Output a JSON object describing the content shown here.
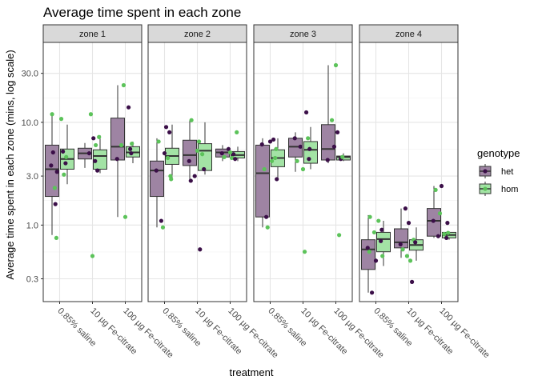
{
  "chart_data": {
    "type": "box",
    "title": "Average time spent in each zone",
    "xlabel": "treatment",
    "ylabel": "Average time spent in each zone (mins, log scale)",
    "yscale": "log10",
    "ylim": [
      0.18,
      60
    ],
    "yticks": [
      0.3,
      1.0,
      3.0,
      10.0,
      30.0
    ],
    "ytick_labels": [
      "0.3",
      "1.0",
      "3.0",
      "10.0",
      "30.0"
    ],
    "categories": [
      "0.85% saline",
      "10 µg Fe-citrate",
      "100 µg Fe-citrate"
    ],
    "facets": [
      "zone 1",
      "zone 2",
      "zone 3",
      "zone 4"
    ],
    "legend": {
      "title": "genotype",
      "position": "right",
      "entries": [
        {
          "name": "het",
          "fill": "#9e84a3",
          "point": "#3b0f48"
        },
        {
          "name": "hom",
          "fill": "#a3e3a5",
          "point": "#5cc35a"
        }
      ]
    },
    "grid": true,
    "strip_fill": "#d9d9d9",
    "boxes": [
      [
        [
          {
            "genotype": "het",
            "q1": 1.9,
            "median": 3.5,
            "q3": 6.0,
            "low": 0.8,
            "high": 12.5
          },
          {
            "genotype": "hom",
            "q1": 3.5,
            "median": 4.4,
            "q3": 5.5,
            "low": 2.5,
            "high": 9.5
          }
        ],
        [
          {
            "genotype": "het",
            "q1": 4.4,
            "median": 5.0,
            "q3": 5.6,
            "low": 3.6,
            "high": 6.3
          },
          {
            "genotype": "hom",
            "q1": 3.5,
            "median": 4.7,
            "q3": 5.4,
            "low": 3.2,
            "high": 7.5
          }
        ],
        [
          {
            "genotype": "het",
            "q1": 4.3,
            "median": 5.8,
            "q3": 11.0,
            "low": 1.2,
            "high": 23.0
          },
          {
            "genotype": "hom",
            "q1": 4.6,
            "median": 5.1,
            "q3": 5.8,
            "low": 4.0,
            "high": 6.5
          }
        ]
      ],
      [
        [
          {
            "genotype": "het",
            "q1": 1.9,
            "median": 3.4,
            "q3": 4.2,
            "low": 0.95,
            "high": 7.0
          },
          {
            "genotype": "hom",
            "q1": 3.9,
            "median": 4.7,
            "q3": 5.6,
            "low": 2.7,
            "high": 9.5
          }
        ],
        [
          {
            "genotype": "het",
            "q1": 3.8,
            "median": 4.8,
            "q3": 6.7,
            "low": 2.8,
            "high": 10.5
          },
          {
            "genotype": "hom",
            "q1": 3.4,
            "median": 5.3,
            "q3": 6.2,
            "low": 3.1,
            "high": 10.0
          }
        ],
        [
          {
            "genotype": "het",
            "q1": 4.6,
            "median": 5.1,
            "q3": 5.5,
            "low": 4.2,
            "high": 6.0
          },
          {
            "genotype": "hom",
            "q1": 4.5,
            "median": 4.8,
            "q3": 5.2,
            "low": 4.2,
            "high": 5.8
          }
        ]
      ],
      [
        [
          {
            "genotype": "het",
            "q1": 1.2,
            "median": 3.2,
            "q3": 6.0,
            "low": 0.95,
            "high": 7.0
          },
          {
            "genotype": "hom",
            "q1": 3.7,
            "median": 4.5,
            "q3": 5.4,
            "low": 2.7,
            "high": 7.0
          }
        ],
        [
          {
            "genotype": "het",
            "q1": 4.6,
            "median": 5.8,
            "q3": 7.0,
            "low": 3.3,
            "high": 8.0
          },
          {
            "genotype": "hom",
            "q1": 4.0,
            "median": 5.4,
            "q3": 6.5,
            "low": 3.5,
            "high": 9.0
          }
        ],
        [
          {
            "genotype": "het",
            "q1": 4.3,
            "median": 5.5,
            "q3": 9.5,
            "low": 4.0,
            "high": 36.0
          },
          {
            "genotype": "hom",
            "q1": 4.3,
            "median": 4.6,
            "q3": 4.7,
            "low": 4.2,
            "high": 5.0
          }
        ]
      ],
      [
        [
          {
            "genotype": "het",
            "q1": 0.37,
            "median": 0.58,
            "q3": 0.72,
            "low": 0.22,
            "high": 1.25
          },
          {
            "genotype": "hom",
            "q1": 0.55,
            "median": 0.73,
            "q3": 0.85,
            "low": 0.4,
            "high": 1.1
          }
        ],
        [
          {
            "genotype": "het",
            "q1": 0.6,
            "median": 0.68,
            "q3": 0.92,
            "low": 0.48,
            "high": 1.45
          },
          {
            "genotype": "hom",
            "q1": 0.57,
            "median": 0.64,
            "q3": 0.72,
            "low": 0.45,
            "high": 0.95
          }
        ],
        [
          {
            "genotype": "het",
            "q1": 0.78,
            "median": 1.1,
            "q3": 1.45,
            "low": 0.75,
            "high": 2.4
          },
          {
            "genotype": "hom",
            "q1": 0.75,
            "median": 0.8,
            "q3": 0.85,
            "low": 0.72,
            "high": 0.87
          }
        ]
      ]
    ],
    "points": [
      [
        [
          [
            [
              -0.26,
              3.8
            ],
            [
              -0.23,
              12.0
            ],
            [
              -0.2,
              5.1
            ],
            [
              -0.15,
              2.3
            ],
            [
              -0.13,
              1.6
            ],
            [
              -0.1,
              0.75
            ],
            [
              -0.08,
              3.3
            ],
            [
              0.05,
              10.8
            ],
            [
              0.1,
              5.2
            ],
            [
              0.13,
              3.1
            ],
            [
              0.18,
              4.0
            ],
            [
              0.2,
              4.6
            ]
          ]
        ],
        [
          [
            [
              -0.1,
              5.0
            ],
            [
              -0.05,
              12.0
            ],
            [
              0.03,
              7.0
            ],
            [
              0.1,
              6.0
            ],
            [
              0.15,
              3.4
            ],
            [
              0.2,
              7.2
            ],
            [
              0.08,
              4.2
            ],
            [
              0.0,
              0.5
            ]
          ]
        ],
        [
          [
            [
              -0.25,
              4.4
            ],
            [
              -0.05,
              23.0
            ],
            [
              0.1,
              14.0
            ],
            [
              0.0,
              1.2
            ],
            [
              0.15,
              5.5
            ],
            [
              0.2,
              6.2
            ],
            [
              0.18,
              5.0
            ],
            [
              -0.12,
              6.0
            ]
          ]
        ]
      ],
      [
        [
          [
            [
              -0.25,
              3.4
            ],
            [
              -0.18,
              6.5
            ],
            [
              -0.1,
              1.1
            ],
            [
              -0.05,
              0.95
            ],
            [
              0.05,
              9.0
            ],
            [
              0.1,
              4.5
            ],
            [
              0.0,
              5.0
            ],
            [
              0.2,
              2.8
            ],
            [
              0.15,
              8.0
            ],
            [
              0.18,
              3.0
            ]
          ]
        ],
        [
          [
            [
              -0.25,
              4.2
            ],
            [
              -0.18,
              10.5
            ],
            [
              -0.08,
              3.0
            ],
            [
              0.0,
              5.3
            ],
            [
              0.08,
              0.58
            ],
            [
              0.15,
              4.9
            ],
            [
              0.2,
              3.5
            ],
            [
              0.05,
              6.5
            ],
            [
              -0.2,
              2.7
            ]
          ]
        ],
        [
          [
            [
              -0.25,
              5.0
            ],
            [
              -0.18,
              4.6
            ],
            [
              -0.05,
              5.5
            ],
            [
              0.05,
              4.5
            ],
            [
              0.1,
              4.9
            ],
            [
              0.2,
              8.0
            ],
            [
              0.15,
              4.4
            ],
            [
              0.0,
              5.1
            ]
          ]
        ]
      ],
      [
        [
          [
            [
              -0.25,
              6.1
            ],
            [
              -0.18,
              3.5
            ],
            [
              -0.12,
              1.2
            ],
            [
              -0.08,
              0.95
            ],
            [
              0.0,
              6.5
            ],
            [
              0.05,
              4.2
            ],
            [
              0.1,
              6.8
            ],
            [
              0.15,
              4.5
            ],
            [
              0.2,
              2.8
            ],
            [
              0.18,
              5.5
            ]
          ]
        ],
        [
          [
            [
              -0.25,
              7.0
            ],
            [
              -0.18,
              4.2
            ],
            [
              -0.08,
              5.8
            ],
            [
              0.0,
              3.5
            ],
            [
              0.1,
              12.5
            ],
            [
              0.15,
              7.0
            ],
            [
              0.2,
              5.5
            ],
            [
              0.05,
              0.55
            ],
            [
              0.18,
              4.4
            ]
          ]
        ],
        [
          [
            [
              -0.25,
              4.3
            ],
            [
              -0.12,
              10.5
            ],
            [
              -0.05,
              5.8
            ],
            [
              0.0,
              36.0
            ],
            [
              0.05,
              8.0
            ],
            [
              0.1,
              0.8
            ],
            [
              0.15,
              4.4
            ],
            [
              0.2,
              4.6
            ]
          ]
        ]
      ],
      [
        [
          [
            [
              -0.25,
              0.6
            ],
            [
              -0.18,
              1.2
            ],
            [
              -0.12,
              0.22
            ],
            [
              -0.05,
              0.85
            ],
            [
              0.0,
              0.45
            ],
            [
              0.08,
              1.1
            ],
            [
              0.15,
              0.7
            ],
            [
              0.2,
              0.5
            ],
            [
              0.18,
              0.9
            ],
            [
              -0.2,
              0.55
            ]
          ]
        ],
        [
          [
            [
              -0.25,
              0.65
            ],
            [
              -0.18,
              0.58
            ],
            [
              -0.1,
              1.45
            ],
            [
              -0.05,
              0.5
            ],
            [
              0.0,
              1.05
            ],
            [
              0.05,
              0.45
            ],
            [
              0.1,
              0.28
            ],
            [
              0.15,
              0.72
            ],
            [
              0.2,
              0.68
            ]
          ]
        ],
        [
          [
            [
              -0.25,
              1.1
            ],
            [
              -0.18,
              2.2
            ],
            [
              -0.1,
              0.78
            ],
            [
              -0.05,
              1.3
            ],
            [
              0.0,
              2.4
            ],
            [
              0.08,
              0.82
            ],
            [
              0.15,
              0.75
            ],
            [
              0.2,
              0.84
            ],
            [
              0.18,
              1.05
            ]
          ]
        ]
      ]
    ]
  }
}
